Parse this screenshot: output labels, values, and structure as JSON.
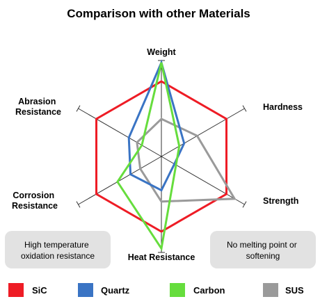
{
  "chart_data": {
    "type": "radar",
    "title": "Comparison with other Materials",
    "axes": [
      "Weight",
      "Hardness",
      "Strength",
      "Heat Resistance",
      "Corrosion Resistance",
      "Abrasion Resistance"
    ],
    "scale_max": 5,
    "series": [
      {
        "name": "SiC",
        "color": "#ee1c25",
        "values": [
          4,
          4,
          4,
          4,
          4,
          4
        ]
      },
      {
        "name": "Quartz",
        "color": "#3a74c4",
        "values": [
          5,
          1.4,
          0.8,
          1.8,
          1.9,
          2.0
        ]
      },
      {
        "name": "Carbon",
        "color": "#66dd3d",
        "values": [
          5,
          1.1,
          0.9,
          4.9,
          2.7,
          1.2
        ]
      },
      {
        "name": "SUS",
        "color": "#9a9a9a",
        "values": [
          2,
          2.2,
          4.5,
          2.4,
          1.3,
          1.5
        ]
      }
    ],
    "callouts": [
      "High temperature oxidation resistance",
      "No melting point or softening"
    ]
  },
  "colors": {
    "axis": "#333333",
    "callout_bg": "#e2e2e2"
  }
}
